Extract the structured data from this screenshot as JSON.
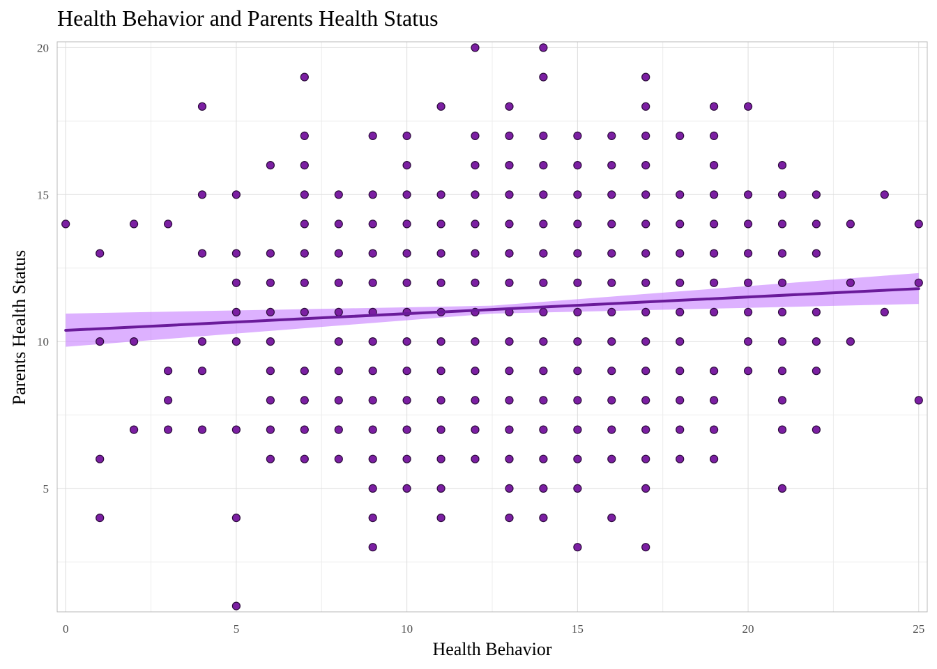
{
  "title": "Health Behavior and Parents Health Status",
  "colors": {
    "point_fill": "#7b1fa2",
    "point_stroke": "#2a0a3a",
    "line": "#6a1b9a",
    "ribbon": "#c77dff"
  },
  "chart_data": {
    "type": "scatter",
    "title": "Health Behavior and Parents Health Status",
    "xlabel": "Health Behavior",
    "ylabel": "Parents Health Status",
    "xlim": [
      -0.25,
      25.25
    ],
    "ylim": [
      0.8,
      20.2
    ],
    "x_ticks": [
      0,
      5,
      10,
      15,
      20,
      25
    ],
    "y_ticks": [
      5,
      10,
      15,
      20
    ],
    "x_tick_labels": [
      "0",
      "5",
      "10",
      "15",
      "20",
      "25"
    ],
    "y_tick_labels": [
      "5",
      "10",
      "15",
      "20"
    ],
    "grid": true,
    "legend": "none",
    "points": [
      [
        0,
        14
      ],
      [
        1,
        13
      ],
      [
        1,
        10
      ],
      [
        1,
        6
      ],
      [
        1,
        4
      ],
      [
        2,
        14
      ],
      [
        2,
        10
      ],
      [
        2,
        7
      ],
      [
        3,
        14
      ],
      [
        3,
        9
      ],
      [
        3,
        8
      ],
      [
        3,
        7
      ],
      [
        4,
        18
      ],
      [
        4,
        15
      ],
      [
        4,
        13
      ],
      [
        4,
        10
      ],
      [
        4,
        9
      ],
      [
        4,
        7
      ],
      [
        5,
        15
      ],
      [
        5,
        13
      ],
      [
        5,
        12
      ],
      [
        5,
        11
      ],
      [
        5,
        10
      ],
      [
        5,
        7
      ],
      [
        5,
        4
      ],
      [
        5,
        1
      ],
      [
        6,
        16
      ],
      [
        6,
        13
      ],
      [
        6,
        12
      ],
      [
        6,
        11
      ],
      [
        6,
        10
      ],
      [
        6,
        9
      ],
      [
        6,
        8
      ],
      [
        6,
        7
      ],
      [
        6,
        6
      ],
      [
        7,
        19
      ],
      [
        7,
        17
      ],
      [
        7,
        16
      ],
      [
        7,
        15
      ],
      [
        7,
        14
      ],
      [
        7,
        13
      ],
      [
        7,
        12
      ],
      [
        7,
        11
      ],
      [
        7,
        9
      ],
      [
        7,
        8
      ],
      [
        7,
        7
      ],
      [
        7,
        6
      ],
      [
        8,
        15
      ],
      [
        8,
        14
      ],
      [
        8,
        13
      ],
      [
        8,
        12
      ],
      [
        8,
        11
      ],
      [
        8,
        10
      ],
      [
        8,
        9
      ],
      [
        8,
        8
      ],
      [
        8,
        7
      ],
      [
        8,
        6
      ],
      [
        9,
        17
      ],
      [
        9,
        15
      ],
      [
        9,
        14
      ],
      [
        9,
        13
      ],
      [
        9,
        12
      ],
      [
        9,
        11
      ],
      [
        9,
        10
      ],
      [
        9,
        9
      ],
      [
        9,
        8
      ],
      [
        9,
        7
      ],
      [
        9,
        6
      ],
      [
        9,
        5
      ],
      [
        9,
        4
      ],
      [
        9,
        3
      ],
      [
        10,
        17
      ],
      [
        10,
        16
      ],
      [
        10,
        15
      ],
      [
        10,
        14
      ],
      [
        10,
        13
      ],
      [
        10,
        12
      ],
      [
        10,
        11
      ],
      [
        10,
        10
      ],
      [
        10,
        9
      ],
      [
        10,
        8
      ],
      [
        10,
        7
      ],
      [
        10,
        6
      ],
      [
        10,
        5
      ],
      [
        11,
        18
      ],
      [
        11,
        15
      ],
      [
        11,
        14
      ],
      [
        11,
        13
      ],
      [
        11,
        12
      ],
      [
        11,
        11
      ],
      [
        11,
        10
      ],
      [
        11,
        9
      ],
      [
        11,
        8
      ],
      [
        11,
        7
      ],
      [
        11,
        6
      ],
      [
        11,
        5
      ],
      [
        11,
        4
      ],
      [
        12,
        20
      ],
      [
        12,
        17
      ],
      [
        12,
        16
      ],
      [
        12,
        15
      ],
      [
        12,
        14
      ],
      [
        12,
        13
      ],
      [
        12,
        12
      ],
      [
        12,
        11
      ],
      [
        12,
        10
      ],
      [
        12,
        9
      ],
      [
        12,
        8
      ],
      [
        12,
        7
      ],
      [
        12,
        6
      ],
      [
        13,
        18
      ],
      [
        13,
        17
      ],
      [
        13,
        16
      ],
      [
        13,
        15
      ],
      [
        13,
        14
      ],
      [
        13,
        13
      ],
      [
        13,
        12
      ],
      [
        13,
        11
      ],
      [
        13,
        10
      ],
      [
        13,
        9
      ],
      [
        13,
        8
      ],
      [
        13,
        7
      ],
      [
        13,
        6
      ],
      [
        13,
        5
      ],
      [
        13,
        4
      ],
      [
        14,
        20
      ],
      [
        14,
        19
      ],
      [
        14,
        17
      ],
      [
        14,
        16
      ],
      [
        14,
        15
      ],
      [
        14,
        14
      ],
      [
        14,
        13
      ],
      [
        14,
        12
      ],
      [
        14,
        11
      ],
      [
        14,
        10
      ],
      [
        14,
        9
      ],
      [
        14,
        8
      ],
      [
        14,
        7
      ],
      [
        14,
        6
      ],
      [
        14,
        5
      ],
      [
        14,
        4
      ],
      [
        15,
        17
      ],
      [
        15,
        16
      ],
      [
        15,
        15
      ],
      [
        15,
        14
      ],
      [
        15,
        13
      ],
      [
        15,
        12
      ],
      [
        15,
        11
      ],
      [
        15,
        10
      ],
      [
        15,
        9
      ],
      [
        15,
        8
      ],
      [
        15,
        7
      ],
      [
        15,
        6
      ],
      [
        15,
        5
      ],
      [
        15,
        3
      ],
      [
        16,
        17
      ],
      [
        16,
        16
      ],
      [
        16,
        15
      ],
      [
        16,
        14
      ],
      [
        16,
        13
      ],
      [
        16,
        12
      ],
      [
        16,
        11
      ],
      [
        16,
        10
      ],
      [
        16,
        9
      ],
      [
        16,
        8
      ],
      [
        16,
        7
      ],
      [
        16,
        6
      ],
      [
        16,
        4
      ],
      [
        17,
        19
      ],
      [
        17,
        18
      ],
      [
        17,
        17
      ],
      [
        17,
        16
      ],
      [
        17,
        15
      ],
      [
        17,
        14
      ],
      [
        17,
        13
      ],
      [
        17,
        12
      ],
      [
        17,
        11
      ],
      [
        17,
        10
      ],
      [
        17,
        9
      ],
      [
        17,
        8
      ],
      [
        17,
        7
      ],
      [
        17,
        6
      ],
      [
        17,
        5
      ],
      [
        17,
        3
      ],
      [
        18,
        17
      ],
      [
        18,
        15
      ],
      [
        18,
        14
      ],
      [
        18,
        13
      ],
      [
        18,
        12
      ],
      [
        18,
        11
      ],
      [
        18,
        10
      ],
      [
        18,
        9
      ],
      [
        18,
        8
      ],
      [
        18,
        7
      ],
      [
        18,
        6
      ],
      [
        19,
        18
      ],
      [
        19,
        17
      ],
      [
        19,
        16
      ],
      [
        19,
        15
      ],
      [
        19,
        14
      ],
      [
        19,
        13
      ],
      [
        19,
        12
      ],
      [
        19,
        11
      ],
      [
        19,
        9
      ],
      [
        19,
        8
      ],
      [
        19,
        7
      ],
      [
        19,
        6
      ],
      [
        20,
        18
      ],
      [
        20,
        15
      ],
      [
        20,
        14
      ],
      [
        20,
        13
      ],
      [
        20,
        12
      ],
      [
        20,
        11
      ],
      [
        20,
        10
      ],
      [
        20,
        9
      ],
      [
        21,
        16
      ],
      [
        21,
        15
      ],
      [
        21,
        14
      ],
      [
        21,
        13
      ],
      [
        21,
        12
      ],
      [
        21,
        11
      ],
      [
        21,
        10
      ],
      [
        21,
        9
      ],
      [
        21,
        8
      ],
      [
        21,
        7
      ],
      [
        21,
        5
      ],
      [
        22,
        15
      ],
      [
        22,
        14
      ],
      [
        22,
        13
      ],
      [
        22,
        11
      ],
      [
        22,
        10
      ],
      [
        22,
        9
      ],
      [
        22,
        7
      ],
      [
        23,
        14
      ],
      [
        23,
        12
      ],
      [
        23,
        10
      ],
      [
        24,
        15
      ],
      [
        24,
        11
      ],
      [
        25,
        14
      ],
      [
        25,
        12
      ],
      [
        25,
        8
      ]
    ],
    "fit_line": {
      "x": [
        0,
        25
      ],
      "y": [
        10.38,
        11.8
      ],
      "ci_lower": [
        9.82,
        11.28
      ],
      "ci_upper": [
        10.95,
        12.33
      ],
      "ci_mid_x": 12.5,
      "ci_mid_lower": [
        10.95
      ],
      "ci_mid_upper": [
        11.22
      ]
    }
  }
}
